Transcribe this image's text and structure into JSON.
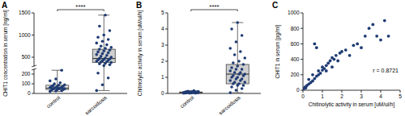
{
  "chart_data": [
    {
      "type": "box",
      "title": "A",
      "y_label": "CHIT1 concentration in serum [ng/ml]",
      "ylim": [
        0,
        1500
      ],
      "yticks": [
        0,
        100,
        200,
        500,
        1000,
        1500
      ],
      "y_break": [
        250,
        300
      ],
      "annotation": "****",
      "color": "#1f3b73",
      "series": [
        {
          "name": "control",
          "color": "#e3e3e3",
          "values": [
            20,
            25,
            30,
            35,
            40,
            40,
            45,
            50,
            50,
            55,
            55,
            60,
            60,
            65,
            70,
            70,
            75,
            80,
            85,
            90,
            100,
            110,
            130,
            150,
            240
          ],
          "box": {
            "min": 20,
            "q1": 40,
            "median": 55,
            "q3": 85,
            "max": 240
          }
        },
        {
          "name": "sarcoidosis",
          "color": "#cfcfcf",
          "values": [
            30,
            90,
            160,
            210,
            310,
            330,
            350,
            360,
            380,
            390,
            400,
            410,
            420,
            430,
            440,
            450,
            460,
            470,
            480,
            500,
            520,
            540,
            560,
            580,
            600,
            620,
            640,
            660,
            680,
            700,
            720,
            750,
            780,
            820,
            860,
            900,
            950,
            1000,
            1100,
            1200,
            1450
          ],
          "box": {
            "min": 30,
            "q1": 380,
            "median": 470,
            "q3": 680,
            "max": 1450
          }
        }
      ]
    },
    {
      "type": "box",
      "title": "B",
      "y_label": "Chitinolytic activity in serum [uM/ul/h]",
      "ylim": [
        0,
        5
      ],
      "yticks": [
        0,
        1,
        2,
        3,
        4,
        5
      ],
      "annotation": "****",
      "color": "#1f3b73",
      "series": [
        {
          "name": "control",
          "color": "#e3e3e3",
          "values": [
            0.01,
            0.02,
            0.02,
            0.03,
            0.03,
            0.04,
            0.04,
            0.05,
            0.05,
            0.06,
            0.06,
            0.06,
            0.07,
            0.07,
            0.08,
            0.08,
            0.09,
            0.1,
            0.11,
            0.12,
            0.14,
            0.17
          ],
          "box": {
            "min": 0.01,
            "q1": 0.03,
            "median": 0.06,
            "q3": 0.09,
            "max": 0.17
          }
        },
        {
          "name": "sarcoidosis",
          "color": "#cfcfcf",
          "values": [
            0.05,
            0.2,
            0.3,
            0.4,
            0.5,
            0.5,
            0.6,
            0.6,
            0.7,
            0.7,
            0.8,
            0.8,
            0.9,
            0.9,
            1.0,
            1.0,
            1.1,
            1.1,
            1.2,
            1.2,
            1.3,
            1.3,
            1.4,
            1.5,
            1.5,
            1.6,
            1.7,
            1.8,
            1.9,
            2.0,
            2.2,
            2.4,
            2.6,
            2.8,
            3.2,
            3.6,
            4.0,
            4.4
          ],
          "box": {
            "min": 0.05,
            "q1": 0.6,
            "median": 1.2,
            "q3": 1.8,
            "max": 4.4
          }
        }
      ]
    },
    {
      "type": "scatter",
      "title": "C",
      "x_label": "Chitinolytic activity in serum [uM/ul/h]",
      "y_label": "CHIT1 in serum [pg/ml]",
      "xlim": [
        0,
        5
      ],
      "xticks": [
        0,
        1,
        2,
        3,
        4,
        5
      ],
      "ylim": [
        0,
        1000
      ],
      "yticks": [
        0,
        200,
        400,
        600,
        800,
        1000
      ],
      "annotation": "r = 0.8721",
      "color": "#1f3b73",
      "x": [
        0.05,
        0.1,
        0.15,
        0.2,
        0.3,
        0.3,
        0.4,
        0.5,
        0.5,
        0.6,
        0.6,
        0.7,
        0.7,
        0.8,
        0.8,
        0.9,
        1.0,
        1.0,
        1.1,
        1.2,
        1.2,
        1.3,
        1.4,
        1.5,
        1.5,
        1.6,
        1.7,
        1.8,
        1.9,
        2.0,
        2.2,
        2.4,
        2.6,
        2.8,
        3.0,
        3.2,
        3.4,
        3.6,
        3.8,
        4.0,
        4.2,
        4.4
      ],
      "values": [
        20,
        40,
        30,
        60,
        80,
        140,
        100,
        120,
        200,
        150,
        600,
        180,
        550,
        200,
        250,
        220,
        260,
        300,
        280,
        320,
        250,
        350,
        380,
        300,
        420,
        400,
        450,
        380,
        480,
        500,
        520,
        450,
        580,
        600,
        550,
        700,
        800,
        850,
        700,
        650,
        900,
        700
      ]
    }
  ]
}
